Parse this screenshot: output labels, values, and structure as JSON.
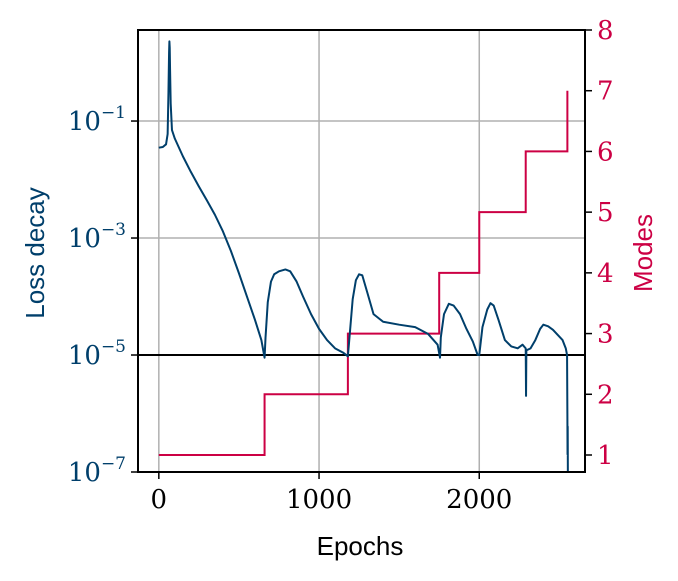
{
  "chart_data": {
    "type": "line",
    "x_axis": {
      "label": "Epochs",
      "range": [
        -130,
        2660
      ],
      "ticks": [
        0,
        1000,
        2000
      ],
      "tick_labels": [
        "0",
        "1000",
        "2000"
      ]
    },
    "y_left": {
      "label": "Loss decay",
      "scale": "log",
      "range": [
        1e-07,
        3.6
      ],
      "ticks": [
        0.1,
        0.001,
        1e-05,
        1e-07
      ],
      "tick_base": "10",
      "tick_exponents": [
        "−1",
        "−3",
        "−5",
        "−7"
      ]
    },
    "y_right": {
      "label": "Modes",
      "scale": "linear",
      "range": [
        0.72,
        8.0
      ],
      "ticks": [
        1,
        2,
        3,
        4,
        5,
        6,
        7,
        8
      ],
      "tick_labels": [
        "1",
        "2",
        "3",
        "4",
        "5",
        "6",
        "7",
        "8"
      ]
    },
    "grid": true,
    "threshold_line": {
      "y": 1e-05,
      "color": "#000000"
    },
    "series": [
      {
        "axis": "left",
        "color": "#003f6b",
        "points": [
          [
            0,
            0.035
          ],
          [
            25,
            0.036
          ],
          [
            45,
            0.04
          ],
          [
            55,
            0.06
          ],
          [
            60,
            0.3
          ],
          [
            64,
            1.5
          ],
          [
            66,
            2.3
          ],
          [
            68,
            1.8
          ],
          [
            70,
            0.8
          ],
          [
            74,
            0.2
          ],
          [
            82,
            0.07
          ],
          [
            100,
            0.05
          ],
          [
            150,
            0.025
          ],
          [
            200,
            0.0135
          ],
          [
            250,
            0.0076
          ],
          [
            300,
            0.0044
          ],
          [
            350,
            0.0025
          ],
          [
            400,
            0.0013
          ],
          [
            450,
            0.0006
          ],
          [
            500,
            0.00025
          ],
          [
            550,
            0.0001
          ],
          [
            600,
            4e-05
          ],
          [
            640,
            1.8e-05
          ],
          [
            660,
            9e-06
          ],
          [
            666,
            2e-05
          ],
          [
            680,
            8e-05
          ],
          [
            700,
            0.00018
          ],
          [
            720,
            0.00024
          ],
          [
            750,
            0.00027
          ],
          [
            790,
            0.00029
          ],
          [
            820,
            0.00027
          ],
          [
            860,
            0.00018
          ],
          [
            900,
            0.0001
          ],
          [
            950,
            5e-05
          ],
          [
            1000,
            2.8e-05
          ],
          [
            1050,
            1.8e-05
          ],
          [
            1100,
            1.3e-05
          ],
          [
            1150,
            1.1e-05
          ],
          [
            1180,
            9.5e-06
          ],
          [
            1190,
            2e-05
          ],
          [
            1210,
            9e-05
          ],
          [
            1230,
            0.00019
          ],
          [
            1250,
            0.00024
          ],
          [
            1270,
            0.00023
          ],
          [
            1300,
            0.00012
          ],
          [
            1340,
            5e-05
          ],
          [
            1400,
            3.7e-05
          ],
          [
            1500,
            3.3e-05
          ],
          [
            1600,
            3e-05
          ],
          [
            1680,
            2.3e-05
          ],
          [
            1740,
            1.5e-05
          ],
          [
            1755,
            9e-06
          ],
          [
            1760,
            2e-05
          ],
          [
            1780,
            5e-05
          ],
          [
            1810,
            7.5e-05
          ],
          [
            1840,
            7e-05
          ],
          [
            1880,
            5e-05
          ],
          [
            1920,
            2.8e-05
          ],
          [
            1960,
            1.7e-05
          ],
          [
            1990,
            1e-05
          ],
          [
            2000,
            1e-05
          ],
          [
            2020,
            3e-05
          ],
          [
            2050,
            6e-05
          ],
          [
            2070,
            7.7e-05
          ],
          [
            2090,
            7e-05
          ],
          [
            2120,
            4e-05
          ],
          [
            2160,
            1.8e-05
          ],
          [
            2200,
            1.4e-05
          ],
          [
            2240,
            1.3e-05
          ],
          [
            2270,
            1.5e-05
          ],
          [
            2290,
            1.3e-05
          ],
          [
            2292,
            2e-06
          ],
          [
            2294,
            1.2e-05
          ],
          [
            2320,
            1.3e-05
          ],
          [
            2350,
            1.8e-05
          ],
          [
            2380,
            2.8e-05
          ],
          [
            2400,
            3.3e-05
          ],
          [
            2430,
            3.1e-05
          ],
          [
            2460,
            2.7e-05
          ],
          [
            2490,
            2.2e-05
          ],
          [
            2520,
            1.8e-05
          ],
          [
            2540,
            1.3e-05
          ],
          [
            2548,
            1e-05
          ],
          [
            2550,
            1e-06
          ],
          [
            2551,
            2e-07
          ],
          [
            2552,
            6e-07
          ],
          [
            2553,
            1e-07
          ]
        ]
      },
      {
        "axis": "right",
        "color": "#cc0044",
        "steps": [
          [
            0,
            1
          ],
          [
            660,
            1
          ],
          [
            660,
            2
          ],
          [
            1180,
            2
          ],
          [
            1180,
            3
          ],
          [
            1750,
            3
          ],
          [
            1750,
            4
          ],
          [
            2000,
            4
          ],
          [
            2000,
            5
          ],
          [
            2290,
            5
          ],
          [
            2290,
            6
          ],
          [
            2550,
            6
          ],
          [
            2550,
            7
          ]
        ]
      }
    ]
  }
}
